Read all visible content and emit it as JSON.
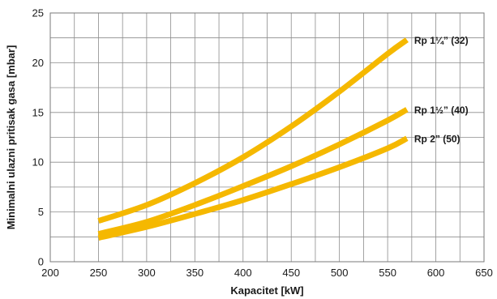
{
  "chart_data": {
    "type": "line",
    "xlabel": "Kapacitet [kW]",
    "ylabel": "Minimalni ulazni pritisak gasa [mbar]",
    "xlim": [
      200,
      650
    ],
    "ylim": [
      0,
      25
    ],
    "x_ticks": [
      200,
      250,
      300,
      350,
      400,
      450,
      500,
      550,
      600,
      650
    ],
    "y_ticks": [
      0,
      5,
      10,
      15,
      20,
      25
    ],
    "x_minor_step": 25,
    "y_minor_step": 2.5,
    "grid": true,
    "line_color": "#f5b800",
    "series": [
      {
        "name": "Rp 1¼” (32)",
        "x": [
          250,
          300,
          350,
          400,
          450,
          500,
          550,
          570
        ],
        "y": [
          4.1,
          5.7,
          7.9,
          10.5,
          13.6,
          17.1,
          20.9,
          22.3
        ]
      },
      {
        "name": "Rp 1½” (40)",
        "x": [
          250,
          300,
          350,
          400,
          450,
          500,
          550,
          570
        ],
        "y": [
          2.8,
          4.0,
          5.7,
          7.6,
          9.6,
          11.8,
          14.2,
          15.3
        ]
      },
      {
        "name": "Rp 2” (50)",
        "x": [
          250,
          300,
          350,
          400,
          450,
          500,
          550,
          570
        ],
        "y": [
          2.4,
          3.5,
          4.8,
          6.2,
          7.8,
          9.5,
          11.4,
          12.4
        ]
      }
    ]
  }
}
